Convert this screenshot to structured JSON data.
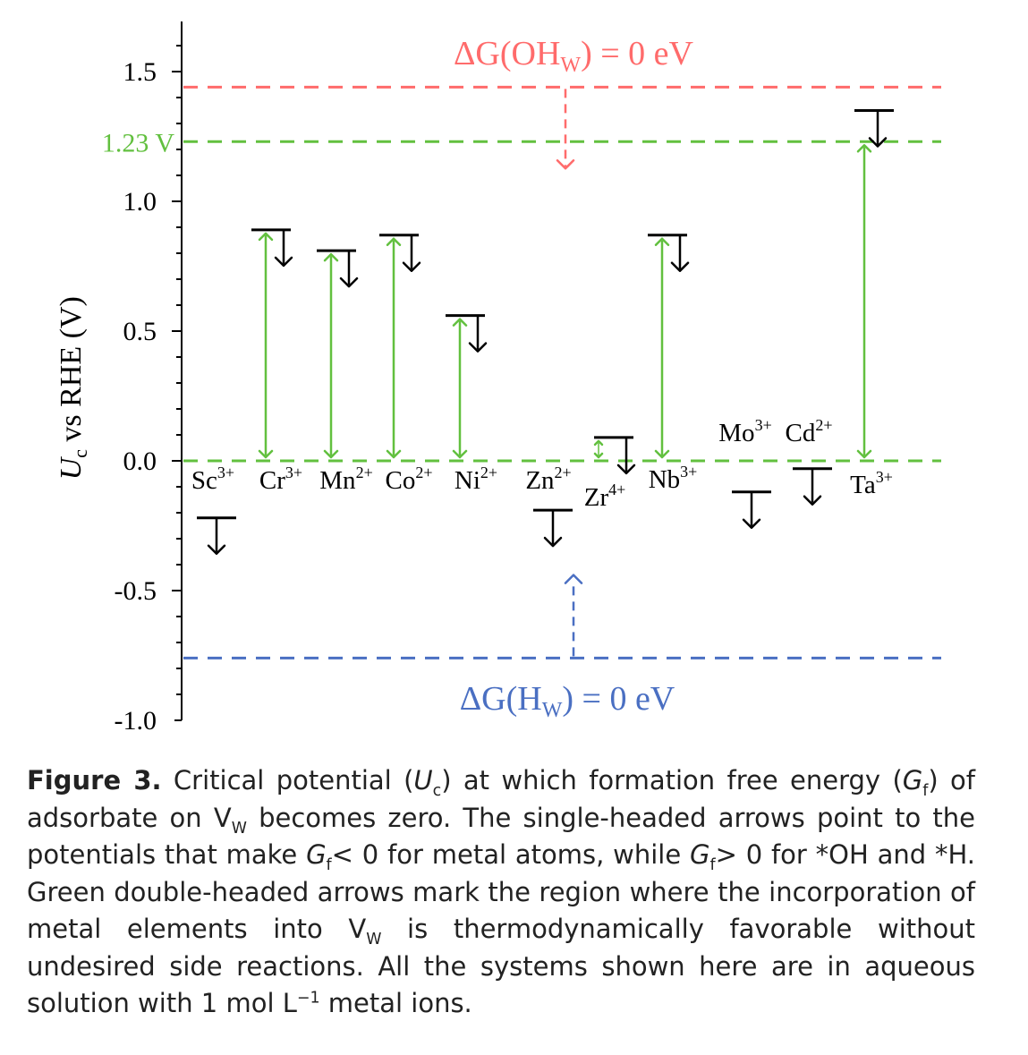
{
  "chart_data": {
    "type": "scatter",
    "ylabel": "U_c vs RHE (V)",
    "ylabel_main": "U",
    "ylabel_sub": "c",
    "ylabel_rest": " vs RHE (V)",
    "ylim": [
      -1.0,
      1.6
    ],
    "yticks": [
      {
        "value": 1.5,
        "label": "1.5"
      },
      {
        "value": 1.0,
        "label": "1.0"
      },
      {
        "value": 0.5,
        "label": "0.5"
      },
      {
        "value": 0.0,
        "label": "0.0"
      },
      {
        "value": -0.5,
        "label": "-0.5"
      },
      {
        "value": -1.0,
        "label": "-1.0"
      }
    ],
    "hlines": [
      {
        "id": "oh",
        "value": 1.44,
        "color": "#ff6b6b"
      },
      {
        "id": "v123",
        "value": 1.23,
        "color": "#62c03f",
        "label": "1.23 V"
      },
      {
        "id": "zero",
        "value": 0.0,
        "color": "#62c03f"
      },
      {
        "id": "h",
        "value": -0.76,
        "color": "#4a6fc2"
      }
    ],
    "annotations": {
      "oh_main": "ΔG(OH",
      "oh_sub": "W",
      "oh_tail": ") = 0 eV",
      "h_main": "ΔG(H",
      "h_sub": "W",
      "h_tail": ") = 0 eV"
    },
    "elements": [
      {
        "id": "sc",
        "base": "Sc",
        "charge": "3+",
        "uc": -0.22,
        "green": false
      },
      {
        "id": "cr",
        "base": "Cr",
        "charge": "3+",
        "uc": 0.89,
        "green": true
      },
      {
        "id": "mn",
        "base": "Mn",
        "charge": "2+",
        "uc": 0.81,
        "green": true
      },
      {
        "id": "co",
        "base": "Co",
        "charge": "2+",
        "uc": 0.87,
        "green": true
      },
      {
        "id": "ni",
        "base": "Ni",
        "charge": "2+",
        "uc": 0.56,
        "green": true
      },
      {
        "id": "zn",
        "base": "Zn",
        "charge": "2+",
        "uc": -0.19,
        "green": false
      },
      {
        "id": "zr",
        "base": "Zr",
        "charge": "4+",
        "uc": 0.09,
        "green": true
      },
      {
        "id": "nb",
        "base": "Nb",
        "charge": "3+",
        "uc": 0.87,
        "green": true
      },
      {
        "id": "mo",
        "base": "Mo",
        "charge": "3+",
        "uc": -0.12,
        "green": false
      },
      {
        "id": "cd",
        "base": "Cd",
        "charge": "2+",
        "uc": -0.03,
        "green": false
      },
      {
        "id": "ta",
        "base": "Ta",
        "charge": "3+",
        "uc": 1.35,
        "green": true
      }
    ]
  },
  "caption": {
    "label": "Figure 3.",
    "t1": " Critical potential (",
    "uc_U": "U",
    "uc_sub": "c",
    "t2": ") at which formation free energy (",
    "gf_G": "G",
    "gf_sub": "f",
    "t3": ") of adsorbate on V",
    "vw_sub": "W",
    "t4": " becomes zero. The single-headed arrows point to the potentials that make ",
    "g2_G": "G",
    "g2_sub": "f",
    "t5": "< 0 for metal atoms, while ",
    "g3_G": "G",
    "g3_sub": "f",
    "t6": "> 0 for *OH and *H. Green double-headed arrows mark the region where the incorporation of metal elements into V",
    "vw2_sub": "W",
    "t7": " is thermodynamically favorable without undesired side reactions. All the systems shown here are in aqueous solution with 1 mol L",
    "sup": "−1",
    "t8": " metal ions."
  }
}
